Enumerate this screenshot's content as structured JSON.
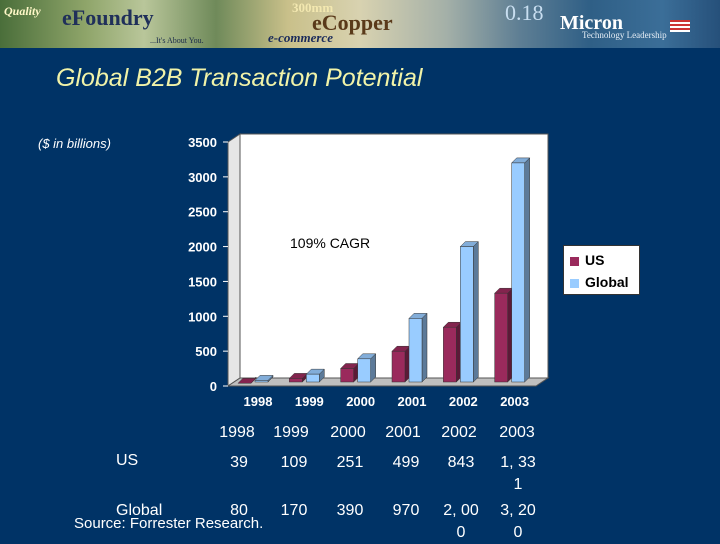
{
  "banner": {
    "logo_left": "Quality",
    "logo_brand": "eFoundry",
    "tagline": "...It's About You.",
    "center_top": "300mm",
    "center_word": "eCopper",
    "center_sub": "e-commerce",
    "right_top": "0.18",
    "right_brand": "Micron",
    "right_sub": "Technology Leadership"
  },
  "page": {
    "title": "Global B2B Transaction Potential",
    "units_note": "($ in billions)",
    "cagr_note": "109% CAGR",
    "source": "Source: Forrester Research."
  },
  "colors": {
    "us": "#9a2a5c",
    "global": "#99ccff",
    "title": "#f1f3a8",
    "background": "#003366"
  },
  "chart_data": {
    "type": "bar",
    "categories": [
      "1998",
      "1999",
      "2000",
      "2001",
      "2002",
      "2003"
    ],
    "series": [
      {
        "name": "US",
        "values": [
          39,
          109,
          251,
          499,
          843,
          1331
        ],
        "display": [
          "39",
          "109",
          "251",
          "499",
          "843",
          "1, 33\n1"
        ]
      },
      {
        "name": "Global",
        "values": [
          80,
          170,
          390,
          970,
          2000,
          3200
        ],
        "display": [
          "80",
          "170",
          "390",
          "970",
          "2, 00\n0",
          "3, 20\n0"
        ]
      }
    ],
    "yticks": [
      "0",
      "500",
      "1000",
      "1500",
      "2000",
      "2500",
      "3000",
      "3500"
    ],
    "ylim": [
      0,
      3500
    ],
    "legend": "right",
    "grid": false
  }
}
